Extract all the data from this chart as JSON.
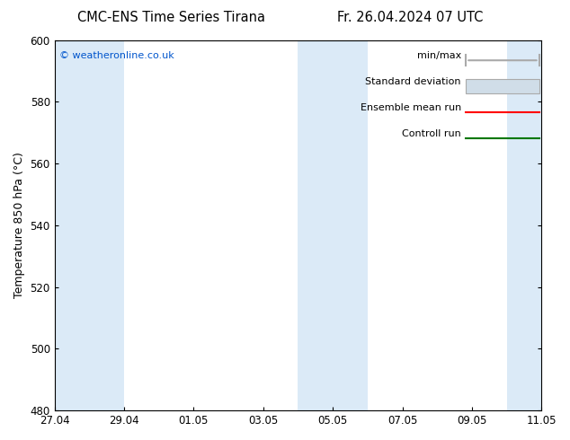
{
  "title_left": "CMC-ENS Time Series Tirana",
  "title_right": "Fr. 26.04.2024 07 UTC",
  "ylabel": "Temperature 850 hPa (°C)",
  "ylim": [
    480,
    600
  ],
  "yticks": [
    480,
    500,
    520,
    540,
    560,
    580,
    600
  ],
  "xlim_start": 0,
  "xlim_end": 14,
  "xtick_labels": [
    "27.04",
    "29.04",
    "01.05",
    "03.05",
    "05.05",
    "07.05",
    "09.05",
    "11.05"
  ],
  "xtick_positions": [
    0,
    2,
    4,
    6,
    8,
    10,
    12,
    14
  ],
  "background_color": "#ffffff",
  "plot_bg_color": "#ffffff",
  "band_color": "#dbeaf7",
  "watermark": "© weatheronline.co.uk",
  "watermark_color": "#0055cc",
  "legend_items": [
    "min/max",
    "Standard deviation",
    "Ensemble mean run",
    "Controll run"
  ],
  "minmax_color": "#aaaaaa",
  "std_color": "#ccddee",
  "ensemble_color": "#ff0000",
  "control_color": "#007700",
  "title_fontsize": 10.5,
  "tick_fontsize": 8.5,
  "ylabel_fontsize": 9,
  "legend_fontsize": 8
}
